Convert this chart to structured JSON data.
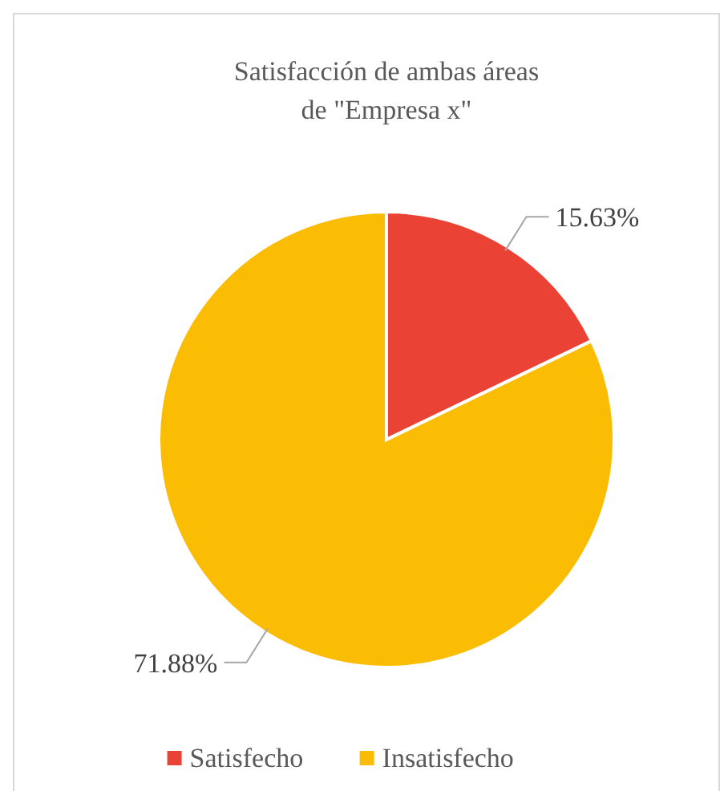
{
  "chart_data": {
    "type": "pie",
    "title": "Satisfacción  de ambas áreas\nde \"Empresa x\"",
    "categories": [
      "Satisfecho",
      "Insatisfecho"
    ],
    "values": [
      15.63,
      71.88
    ],
    "colors": [
      "#ea4335",
      "#fbbc04"
    ],
    "value_labels": [
      "15.63%",
      "71.88%"
    ],
    "legend": "bottom"
  }
}
